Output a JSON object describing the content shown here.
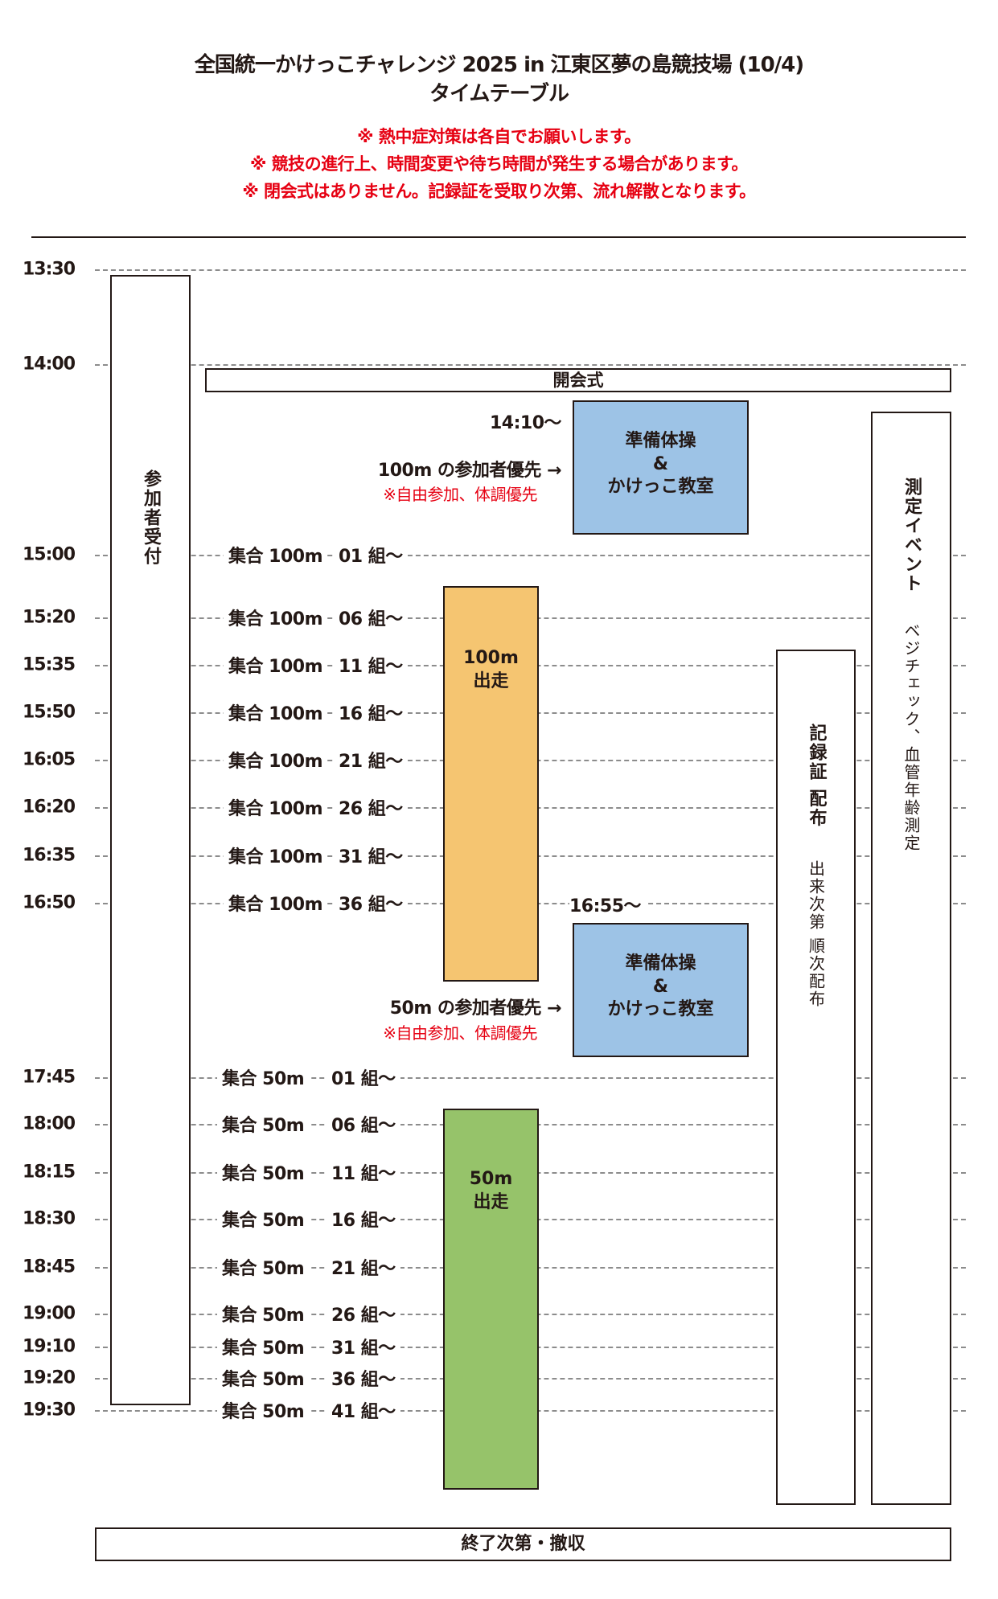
{
  "header": {
    "title": "全国統一かけっこチャレンジ 2025 in 江東区夢の島競技場 (10/4)",
    "subtitle": "タイムテーブル",
    "notes": [
      "※ 熱中症対策は各自でお願いします。",
      "※ 競技の進行上、時間変更や待ち時間が発生する場合があります。",
      "※ 閉会式はありません。記録証を受取り次第、流れ解散となります。"
    ]
  },
  "times": [
    "13:30",
    "14:00",
    "15:00",
    "15:20",
    "15:35",
    "15:50",
    "16:05",
    "16:20",
    "16:35",
    "16:50",
    "17:45",
    "18:00",
    "18:15",
    "18:30",
    "18:45",
    "19:00",
    "19:10",
    "19:20",
    "19:30"
  ],
  "gather100": [
    {
      "label": "集合 100m",
      "group": "01 組〜"
    },
    {
      "label": "集合 100m",
      "group": "06 組〜"
    },
    {
      "label": "集合 100m",
      "group": "11 組〜"
    },
    {
      "label": "集合 100m",
      "group": "16 組〜"
    },
    {
      "label": "集合 100m",
      "group": "21 組〜"
    },
    {
      "label": "集合 100m",
      "group": "26 組〜"
    },
    {
      "label": "集合 100m",
      "group": "31 組〜"
    },
    {
      "label": "集合 100m",
      "group": "36 組〜"
    }
  ],
  "gather50": [
    {
      "label": "集合 50m",
      "group": "01 組〜"
    },
    {
      "label": "集合 50m",
      "group": "06 組〜"
    },
    {
      "label": "集合 50m",
      "group": "11 組〜"
    },
    {
      "label": "集合 50m",
      "group": "16 組〜"
    },
    {
      "label": "集合 50m",
      "group": "21 組〜"
    },
    {
      "label": "集合 50m",
      "group": "26 組〜"
    },
    {
      "label": "集合 50m",
      "group": "31 組〜"
    },
    {
      "label": "集合 50m",
      "group": "36 組〜"
    },
    {
      "label": "集合 50m",
      "group": "41 組〜"
    }
  ],
  "blocks": {
    "reception": "参加者受付",
    "opening": "開会式",
    "warmup1": {
      "time": "14:10〜",
      "line1": "準備体操",
      "line2": "&",
      "line3": "かけっこ教室",
      "priority": "100m の参加者優先 →",
      "note": "※自由参加、体調優先"
    },
    "warmup2": {
      "time": "16:55〜",
      "line1": "準備体操",
      "line2": "&",
      "line3": "かけっこ教室",
      "priority": "50m の参加者優先 →",
      "note": "※自由参加、体調優先"
    },
    "run100": {
      "line1": "100m",
      "line2": "出走"
    },
    "run50": {
      "line1": "50m",
      "line2": "出走"
    },
    "record": {
      "title": "記録証 配布",
      "detail": "出来次第 順次配布"
    },
    "measure": {
      "title": "測定イベント",
      "detail": "ベジチェック、血管年齢測定"
    },
    "end": "終了次第・撤収"
  },
  "colors": {
    "warmup": "#9dc3e6",
    "run100": "#f5c571",
    "run50": "#96c36a",
    "note": "#e60012"
  }
}
